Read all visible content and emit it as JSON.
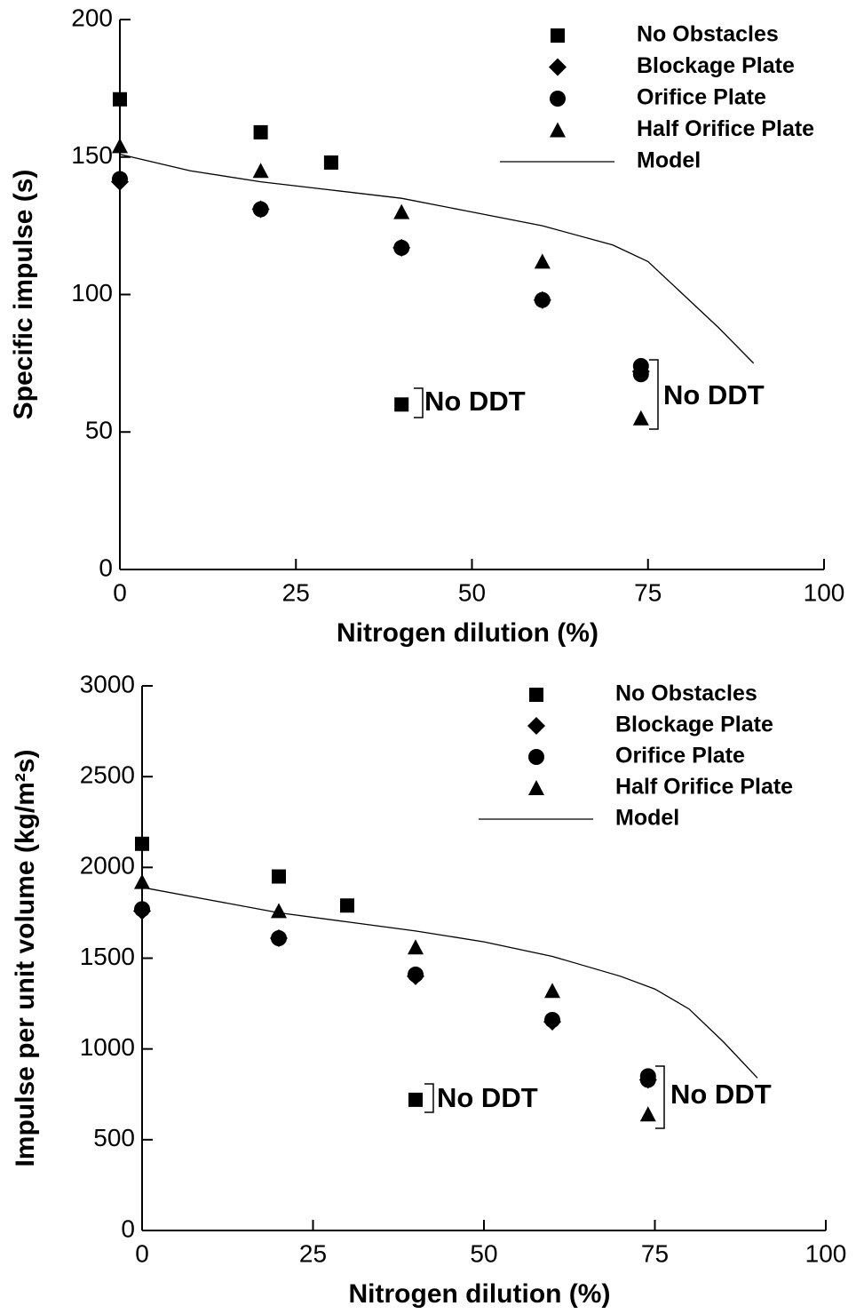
{
  "chart_data": [
    {
      "type": "scatter",
      "x_label": "Nitrogen dilution (%)",
      "y_label": "Specific impulse (s)",
      "xlim": [
        0,
        100
      ],
      "xticks": [
        0,
        25,
        50,
        75,
        100
      ],
      "ylim": [
        0,
        200
      ],
      "yticks": [
        0,
        50,
        100,
        150,
        200
      ],
      "series": [
        {
          "name": "No Obstacles",
          "marker": "square",
          "color": "#000000",
          "x": [
            0,
            20,
            30,
            40
          ],
          "values": [
            171,
            159,
            148,
            60
          ]
        },
        {
          "name": "Blockage Plate",
          "marker": "diamond",
          "color": "#000000",
          "x": [
            0,
            20,
            40,
            60,
            74
          ],
          "values": [
            141,
            131,
            117,
            98,
            72
          ]
        },
        {
          "name": "Orifice Plate",
          "marker": "circle",
          "color": "#000000",
          "x": [
            0,
            20,
            40,
            60,
            74,
            74
          ],
          "values": [
            142,
            131,
            117,
            98,
            74,
            71
          ]
        },
        {
          "name": "Half Orifice Plate",
          "marker": "triangle",
          "color": "#000000",
          "x": [
            0,
            20,
            40,
            60,
            74
          ],
          "values": [
            154,
            145,
            130,
            112,
            55
          ]
        },
        {
          "name": "Model",
          "marker": "line",
          "color": "#000000",
          "x": [
            0,
            10,
            20,
            30,
            40,
            50,
            60,
            70,
            75,
            80,
            85,
            90
          ],
          "values": [
            151,
            145,
            141,
            138,
            135,
            130,
            125,
            118,
            112,
            100,
            88,
            75
          ]
        }
      ],
      "annotations": [
        "No DDT",
        "No DDT"
      ]
    },
    {
      "type": "scatter",
      "x_label": "Nitrogen dilution (%)",
      "y_label": "Impulse per unit volume (kg/m²s)",
      "xlim": [
        0,
        100
      ],
      "xticks": [
        0,
        25,
        50,
        75,
        100
      ],
      "ylim": [
        0,
        3000
      ],
      "yticks": [
        0,
        500,
        1000,
        1500,
        2000,
        2500,
        3000
      ],
      "series": [
        {
          "name": "No Obstacles",
          "marker": "square",
          "color": "#000000",
          "x": [
            0,
            20,
            30,
            40
          ],
          "values": [
            2130,
            1950,
            1790,
            720
          ]
        },
        {
          "name": "Blockage Plate",
          "marker": "diamond",
          "color": "#000000",
          "x": [
            0,
            20,
            40,
            60,
            74
          ],
          "values": [
            1760,
            1610,
            1400,
            1150,
            830
          ]
        },
        {
          "name": "Orifice Plate",
          "marker": "circle",
          "color": "#000000",
          "x": [
            0,
            20,
            40,
            60,
            74,
            74
          ],
          "values": [
            1770,
            1610,
            1410,
            1160,
            850,
            830
          ]
        },
        {
          "name": "Half Orifice Plate",
          "marker": "triangle",
          "color": "#000000",
          "x": [
            0,
            20,
            40,
            60,
            74
          ],
          "values": [
            1920,
            1760,
            1560,
            1320,
            640
          ]
        },
        {
          "name": "Model",
          "marker": "line",
          "color": "#000000",
          "x": [
            0,
            10,
            20,
            30,
            40,
            50,
            60,
            70,
            75,
            80,
            85,
            90
          ],
          "values": [
            1890,
            1820,
            1750,
            1700,
            1650,
            1590,
            1510,
            1400,
            1330,
            1220,
            1040,
            840
          ]
        }
      ],
      "annotations": [
        "No DDT",
        "No DDT"
      ]
    }
  ]
}
